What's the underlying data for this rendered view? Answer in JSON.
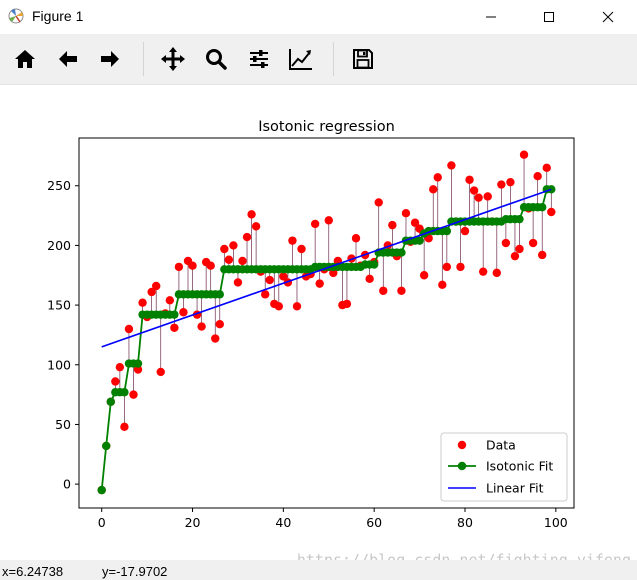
{
  "window": {
    "title": "Figure 1",
    "icon": "matplotlib-icon",
    "controls": [
      "minimize-icon",
      "maximize-icon",
      "close-icon"
    ]
  },
  "toolbar": {
    "buttons": [
      "home-icon",
      "back-arrow-icon",
      "forward-arrow-icon",
      "pan-icon",
      "zoom-icon",
      "configure-subplots-icon",
      "edit-axis-icon",
      "save-icon"
    ]
  },
  "status": {
    "x": "x=6.24738",
    "y": "y=-17.9702"
  },
  "watermark": "https://blog.csdn.net/fighting_yifeng",
  "colors": {
    "data": "#ff0000",
    "isotonic": "#008000",
    "linear": "#0000ff",
    "segments": "#6b2b4b"
  },
  "chart_data": {
    "type": "scatter",
    "title": "Isotonic regression",
    "xlim": [
      -5,
      104
    ],
    "ylim": [
      -20,
      290
    ],
    "xticks": [
      0,
      20,
      40,
      60,
      80,
      100
    ],
    "yticks": [
      0,
      50,
      100,
      150,
      200,
      250
    ],
    "grid": false,
    "legend_position": "lower-right",
    "legend": [
      "Data",
      "Isotonic Fit",
      "Linear Fit"
    ],
    "data_x": [
      0,
      1,
      2,
      3,
      4,
      5,
      6,
      7,
      8,
      9,
      10,
      11,
      12,
      13,
      14,
      15,
      16,
      17,
      18,
      19,
      20,
      21,
      22,
      23,
      24,
      25,
      26,
      27,
      28,
      29,
      30,
      31,
      32,
      33,
      34,
      35,
      36,
      37,
      38,
      39,
      40,
      41,
      42,
      43,
      44,
      45,
      46,
      47,
      48,
      49,
      50,
      51,
      52,
      53,
      54,
      55,
      56,
      57,
      58,
      59,
      60,
      61,
      62,
      63,
      64,
      65,
      66,
      67,
      68,
      69,
      70,
      71,
      72,
      73,
      74,
      75,
      76,
      77,
      78,
      79,
      80,
      81,
      82,
      83,
      84,
      85,
      86,
      87,
      88,
      89,
      90,
      91,
      92,
      93,
      94,
      95,
      96,
      97,
      98,
      99
    ],
    "data_y": [
      -5,
      32,
      69,
      86,
      98,
      48,
      130,
      75,
      96,
      152,
      140,
      161,
      166,
      94,
      143,
      154,
      131,
      182,
      144,
      187,
      183,
      142,
      132,
      186,
      183,
      122,
      134,
      197,
      188,
      200,
      169,
      187,
      207,
      226,
      216,
      178,
      159,
      171,
      151,
      149,
      174,
      169,
      204,
      149,
      197,
      174,
      176,
      218,
      168,
      180,
      221,
      177,
      187,
      150,
      151,
      189,
      206,
      183,
      192,
      172,
      186,
      236,
      162,
      200,
      217,
      191,
      162,
      227,
      203,
      219,
      214,
      175,
      206,
      247,
      257,
      167,
      182,
      267,
      220,
      182,
      212,
      255,
      246,
      240,
      178,
      241,
      220,
      177,
      251,
      202,
      253,
      191,
      197,
      276,
      231,
      202,
      258,
      192,
      265,
      228
    ],
    "isotonic_y": [
      -5,
      32,
      69,
      77,
      77,
      77,
      101,
      101,
      101,
      142,
      142,
      142,
      142,
      142,
      142,
      142,
      142,
      159,
      159,
      159,
      159,
      159,
      159,
      159,
      159,
      159,
      159,
      180,
      180,
      180,
      180,
      180,
      180,
      180,
      180,
      180,
      180,
      180,
      180,
      180,
      180,
      180,
      180,
      180,
      180,
      180,
      180,
      182,
      182,
      182,
      182,
      182,
      182,
      182,
      182,
      182,
      182,
      182,
      184,
      184,
      184,
      194,
      194,
      194,
      194,
      194,
      194,
      204,
      204,
      204,
      204,
      210,
      212,
      212,
      212,
      212,
      212,
      220,
      220,
      220,
      220,
      220,
      220,
      220,
      220,
      220,
      220,
      220,
      220,
      222,
      222,
      222,
      222,
      232,
      232,
      232,
      232,
      232,
      247,
      247
    ],
    "linear_fit": {
      "x": [
        0,
        99
      ],
      "y": [
        115,
        247
      ]
    }
  }
}
